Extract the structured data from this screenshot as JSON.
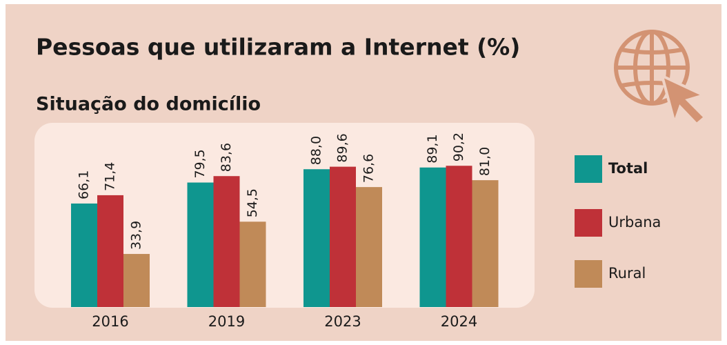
{
  "chart_data": {
    "type": "bar",
    "title": "Pessoas que utilizaram a Internet (%)",
    "subtitle": "Situação do domicílio",
    "categories": [
      "2016",
      "2019",
      "2023",
      "2024"
    ],
    "series": [
      {
        "name": "Total",
        "color": "#0f968f",
        "values": [
          66.1,
          79.5,
          88.0,
          89.1
        ],
        "value_labels": [
          "66,1",
          "79,5",
          "88,0",
          "89,1"
        ]
      },
      {
        "name": "Urbana",
        "color": "#bf3138",
        "values": [
          71.4,
          83.6,
          89.6,
          90.2
        ],
        "value_labels": [
          "71,4",
          "83,6",
          "89,6",
          "90,2"
        ]
      },
      {
        "name": "Rural",
        "color": "#c08a58",
        "values": [
          33.9,
          54.5,
          76.6,
          81.0
        ],
        "value_labels": [
          "33,9",
          "54,5",
          "76,6",
          "81,0"
        ]
      }
    ],
    "ylim": [
      0,
      100
    ]
  }
}
